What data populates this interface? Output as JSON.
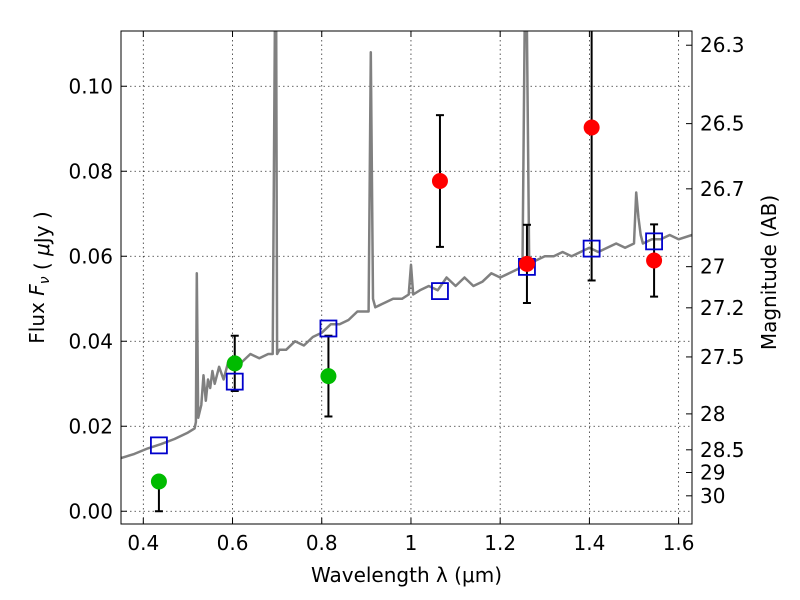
{
  "chart_data": {
    "type": "scatter",
    "xlabel": "Wavelength  λ (μm)",
    "ylabel": "Flux  F_ν  ( μJy )",
    "ylabel_right": "Magnitude (AB)",
    "xlim": [
      0.35,
      1.63
    ],
    "ylim": [
      -0.003,
      0.113
    ],
    "grid": true,
    "x_ticks": [
      0.4,
      0.6,
      0.8,
      1.0,
      1.2,
      1.4,
      1.6
    ],
    "x_tick_labels": [
      "0.4",
      "0.6",
      "0.8",
      "1",
      "1.2",
      "1.4",
      "1.6"
    ],
    "y_ticks": [
      0.0,
      0.02,
      0.04,
      0.06,
      0.08,
      0.1
    ],
    "y_tick_labels": [
      "0.00",
      "0.02",
      "0.04",
      "0.06",
      "0.08",
      "0.10"
    ],
    "mag_ticks": [
      26.3,
      26.5,
      26.7,
      27.0,
      27.2,
      27.5,
      28.0,
      28.5,
      29.0,
      30.0
    ],
    "mag_tick_labels": [
      "26.3",
      "26.5",
      "26.7",
      "27",
      "27.2",
      "27.5",
      "28",
      "28.5",
      "29",
      "30"
    ],
    "colors": {
      "spectrum": "#808080",
      "model": "#0000cc",
      "green": "#00bb00",
      "red": "#ff0000",
      "errorbar": "#000000"
    },
    "model_points": {
      "x": [
        0.435,
        0.605,
        0.815,
        1.065,
        1.26,
        1.405,
        1.545
      ],
      "y": [
        0.0155,
        0.0305,
        0.043,
        0.0518,
        0.0575,
        0.0618,
        0.0635
      ]
    },
    "observed_green": {
      "x": [
        0.435,
        0.605,
        0.815
      ],
      "y": [
        0.007,
        0.0348,
        0.0318
      ],
      "yerr_low": [
        0.007,
        0.0065,
        0.0095
      ],
      "yerr_high": [
        0.0,
        0.0065,
        0.0095
      ]
    },
    "observed_red": {
      "x": [
        1.065,
        1.26,
        1.405,
        1.545
      ],
      "y": [
        0.0777,
        0.0582,
        0.0903,
        0.059
      ],
      "yerr_low": [
        0.0155,
        0.0092,
        0.036,
        0.0085
      ],
      "yerr_high": [
        0.0155,
        0.0092,
        0.025,
        0.0085
      ]
    },
    "spectrum": {
      "x": [
        0.35,
        0.38,
        0.41,
        0.44,
        0.47,
        0.5,
        0.515,
        0.518,
        0.52,
        0.523,
        0.53,
        0.535,
        0.54,
        0.545,
        0.55,
        0.555,
        0.56,
        0.57,
        0.58,
        0.59,
        0.6,
        0.62,
        0.64,
        0.66,
        0.68,
        0.69,
        0.695,
        0.698,
        0.7,
        0.705,
        0.72,
        0.74,
        0.76,
        0.78,
        0.8,
        0.82,
        0.84,
        0.86,
        0.88,
        0.9,
        0.905,
        0.91,
        0.915,
        0.92,
        0.94,
        0.96,
        0.98,
        0.995,
        1.0,
        1.005,
        1.02,
        1.04,
        1.06,
        1.08,
        1.1,
        1.12,
        1.14,
        1.16,
        1.18,
        1.2,
        1.22,
        1.24,
        1.25,
        1.255,
        1.26,
        1.265,
        1.28,
        1.3,
        1.32,
        1.34,
        1.36,
        1.38,
        1.4,
        1.42,
        1.44,
        1.46,
        1.48,
        1.5,
        1.505,
        1.51,
        1.515,
        1.52,
        1.54,
        1.56,
        1.58,
        1.6,
        1.63
      ],
      "y": [
        0.0125,
        0.0135,
        0.0148,
        0.0158,
        0.017,
        0.0185,
        0.0195,
        0.021,
        0.056,
        0.022,
        0.025,
        0.032,
        0.026,
        0.031,
        0.029,
        0.033,
        0.03,
        0.034,
        0.031,
        0.035,
        0.036,
        0.035,
        0.037,
        0.036,
        0.037,
        0.037,
        0.115,
        0.114,
        0.037,
        0.038,
        0.038,
        0.04,
        0.039,
        0.041,
        0.042,
        0.044,
        0.044,
        0.045,
        0.047,
        0.047,
        0.047,
        0.108,
        0.05,
        0.048,
        0.049,
        0.05,
        0.05,
        0.051,
        0.058,
        0.051,
        0.052,
        0.053,
        0.052,
        0.055,
        0.053,
        0.055,
        0.053,
        0.054,
        0.056,
        0.055,
        0.056,
        0.057,
        0.058,
        0.115,
        0.114,
        0.058,
        0.059,
        0.06,
        0.06,
        0.061,
        0.06,
        0.061,
        0.062,
        0.061,
        0.062,
        0.063,
        0.062,
        0.063,
        0.075,
        0.069,
        0.065,
        0.063,
        0.064,
        0.064,
        0.065,
        0.064,
        0.065
      ]
    }
  }
}
